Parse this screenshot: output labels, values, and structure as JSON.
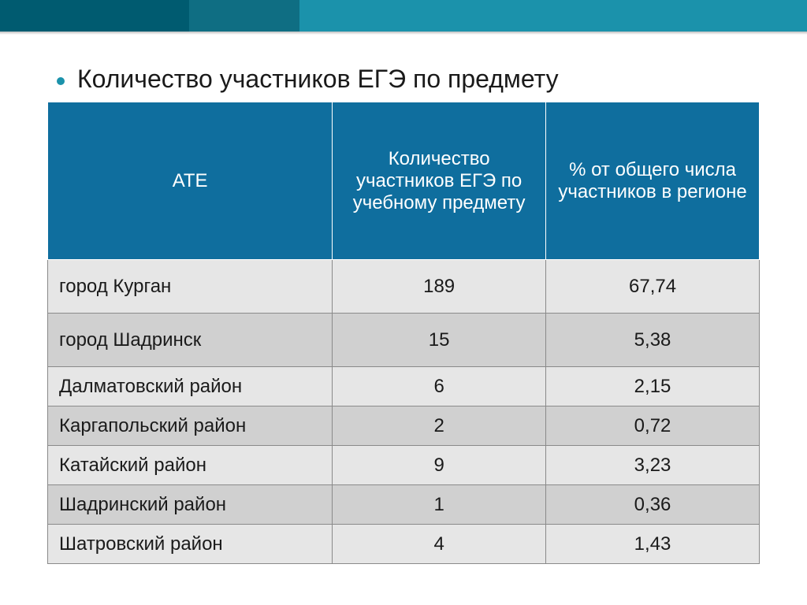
{
  "colors": {
    "topbar_seg1": "#005b70",
    "topbar_seg2": "#0f6e83",
    "topbar_seg3": "#1b92ab",
    "bullet": "#1b92ab",
    "header_bg": "#0f6e9e",
    "header_text": "#ffffff",
    "row_bg_light": "#e6e6e6",
    "row_bg_dark": "#d0d0d0",
    "cell_border": "#8a8a8a",
    "body_text": "#1a1a1a",
    "page_bg": "#ffffff"
  },
  "bullet_title": "Количество участников ЕГЭ по предмету",
  "table": {
    "columns": [
      {
        "label": "АТЕ",
        "width_pct": 40,
        "align": "left"
      },
      {
        "label": "Количество участников ЕГЭ по учебному предмету",
        "width_pct": 30,
        "align": "center"
      },
      {
        "label": "% от общего числа участников в регионе",
        "width_pct": 30,
        "align": "center"
      }
    ],
    "header_fontsize": 24,
    "cell_fontsize": 24,
    "row_stripe_colors": [
      "#e6e6e6",
      "#d0d0d0"
    ],
    "rows": [
      {
        "ate": "город Курган",
        "count": "189",
        "pct": "67,74"
      },
      {
        "ate": "город Шадринск",
        "count": "15",
        "pct": "5,38"
      },
      {
        "ate": "Далматовский район",
        "count": "6",
        "pct": "2,15"
      },
      {
        "ate": "Каргапольский район",
        "count": "2",
        "pct": "0,72"
      },
      {
        "ate": "Катайский район",
        "count": "9",
        "pct": "3,23"
      },
      {
        "ate": "Шадринский район",
        "count": "1",
        "pct": "0,36"
      },
      {
        "ate": "Шатровский район",
        "count": "4",
        "pct": "1,43"
      }
    ]
  }
}
